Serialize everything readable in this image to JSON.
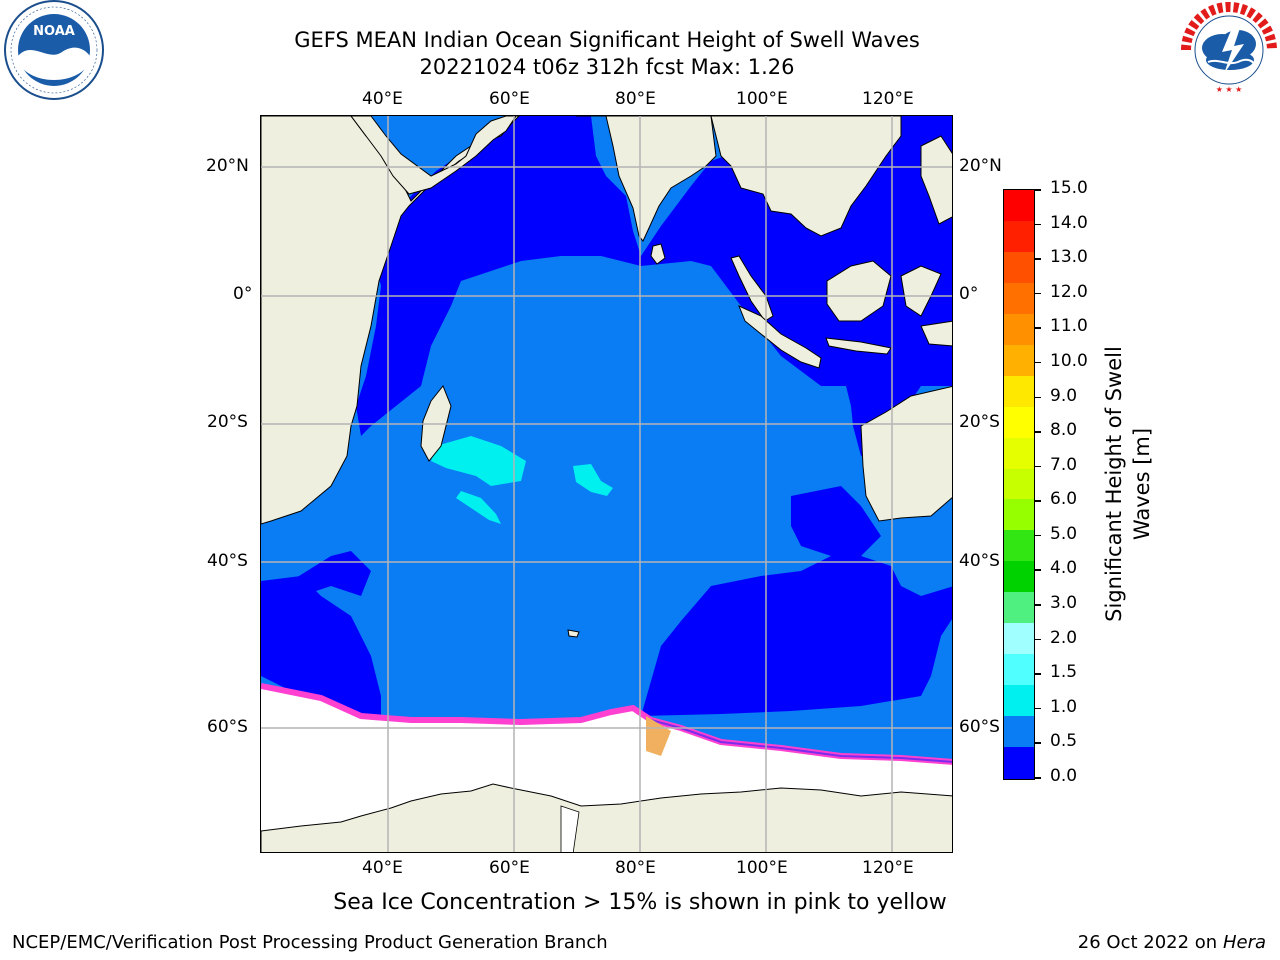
{
  "title": {
    "line1": "GEFS MEAN Indian Ocean Significant Height of Swell Waves",
    "line2": "20221024 t06z 312h fcst   Max: 1.26"
  },
  "logos": {
    "left": {
      "name": "noaa-logo",
      "text": "NOAA",
      "ring_text": "NATIONAL OCEANIC AND ATMOSPHERIC ADMINISTRATION · U.S. DEPARTMENT OF COMMERCE"
    },
    "right": {
      "name": "nws-logo",
      "ring_text": "NATIONAL WEATHER SERVICE"
    }
  },
  "map": {
    "top_lon_labels": [
      "40°E",
      "60°E",
      "80°E",
      "100°E",
      "120°E"
    ],
    "bottom_lon_labels": [
      "40°E",
      "60°E",
      "80°E",
      "100°E",
      "120°E"
    ],
    "left_lat_labels": [
      "20°N",
      "0°",
      "20°S",
      "40°S",
      "60°S"
    ],
    "right_lat_labels": [
      "20°N",
      "0°",
      "20°S",
      "40°S",
      "60°S"
    ],
    "colors": {
      "land": "#efefdf",
      "sea_ice": "#ffffff",
      "grid": "#b4b4b4"
    }
  },
  "colorbar": {
    "label": "Significant Height of Swell Waves [m]",
    "ticks": [
      "15.0",
      "14.0",
      "13.0",
      "12.0",
      "11.0",
      "10.0",
      "9.0",
      "8.0",
      "7.0",
      "6.0",
      "5.0",
      "4.0",
      "3.0",
      "2.0",
      "1.5",
      "1.0",
      "0.5",
      "0.0"
    ],
    "colors_top_to_bottom": [
      "#ff0000",
      "#ff2000",
      "#ff5000",
      "#ff7000",
      "#ff9000",
      "#ffb000",
      "#ffe800",
      "#ffff00",
      "#e6ff00",
      "#c8ff00",
      "#96ff00",
      "#32e614",
      "#00d200",
      "#50f080",
      "#a0ffff",
      "#50ffff",
      "#00f0f0",
      "#0a7df5",
      "#0000ff"
    ]
  },
  "note": "Sea Ice Concentration > 15% is shown in pink to yellow",
  "footer": {
    "left": "NCEP/EMC/Verification Post Processing Product Generation Branch",
    "right_prefix": "26 Oct 2022 on ",
    "right_host": "Hera"
  }
}
